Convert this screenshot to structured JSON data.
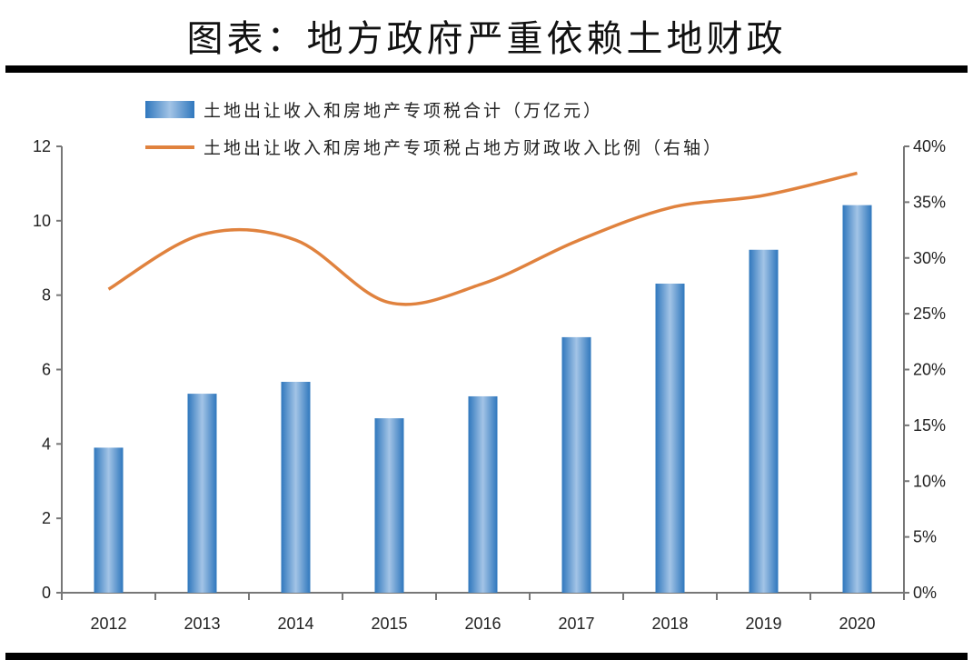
{
  "title": "图表：地方政府严重依赖土地财政",
  "colors": {
    "bar": "#3a80c2",
    "bar_light": "#9ec1e4",
    "line": "#e0823e",
    "axis": "#777777"
  },
  "chart_data": {
    "type": "bar",
    "title": "图表：地方政府严重依赖土地财政",
    "categories": [
      "2012",
      "2013",
      "2014",
      "2015",
      "2016",
      "2017",
      "2018",
      "2019",
      "2020"
    ],
    "series": [
      {
        "name": "土地出让收入和房地产专项税合计（万亿元）",
        "type": "bar",
        "axis": "left",
        "values": [
          3.9,
          5.35,
          5.67,
          4.69,
          5.28,
          6.87,
          8.31,
          9.22,
          10.42
        ]
      },
      {
        "name": "土地出让收入和房地产专项税占地方财政收入比例（右轴）",
        "type": "line",
        "axis": "right",
        "values": [
          27.2,
          32.1,
          31.6,
          26.0,
          27.7,
          31.5,
          34.5,
          35.6,
          37.6
        ]
      }
    ],
    "y_left": {
      "ylim": [
        0,
        12
      ],
      "ticks": [
        "0",
        "2",
        "4",
        "6",
        "8",
        "10",
        "12"
      ]
    },
    "y_right": {
      "ylim": [
        0,
        40
      ],
      "ticks": [
        "0%",
        "5%",
        "10%",
        "15%",
        "20%",
        "25%",
        "30%",
        "35%",
        "40%"
      ]
    },
    "legend": "top-center",
    "grid": false
  }
}
